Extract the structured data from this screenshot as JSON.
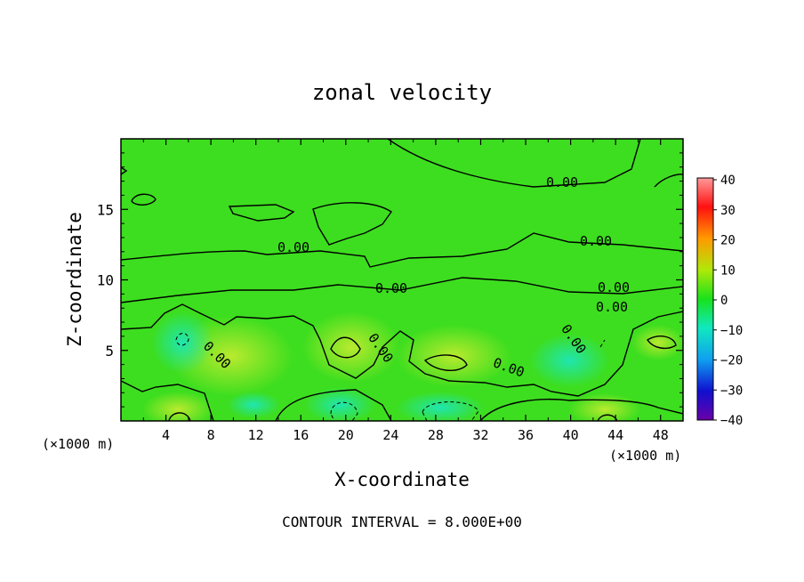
{
  "chart_data": {
    "type": "heatmap",
    "title": "zonal velocity",
    "xlabel": "X-coordinate",
    "ylabel": "Z-coordinate",
    "x_unit_left": "(×1000 m)",
    "x_unit_right": "(×1000 m)",
    "xlim": [
      0,
      50
    ],
    "ylim": [
      0,
      20
    ],
    "x_ticks": [
      "4",
      "8",
      "12",
      "16",
      "20",
      "24",
      "28",
      "32",
      "36",
      "40",
      "44",
      "48"
    ],
    "y_ticks": [
      "5",
      "10",
      "15"
    ],
    "colorbar": {
      "range": [
        -40,
        40
      ],
      "ticks": [
        "40",
        "30",
        "20",
        "10",
        "0",
        "−10",
        "−20",
        "−30",
        "−40"
      ]
    },
    "contour_labels": [
      "0.00",
      "0.00",
      "0.00",
      "0.00",
      "0.00",
      "0.00",
      "0.00",
      "0.00",
      "0.00",
      "0.00"
    ],
    "footer": "CONTOUR INTERVAL = 8.000E+00",
    "colors": {
      "field": "#3dde1f",
      "positive": "#a9e82a",
      "negative": "#22e8a0"
    }
  }
}
